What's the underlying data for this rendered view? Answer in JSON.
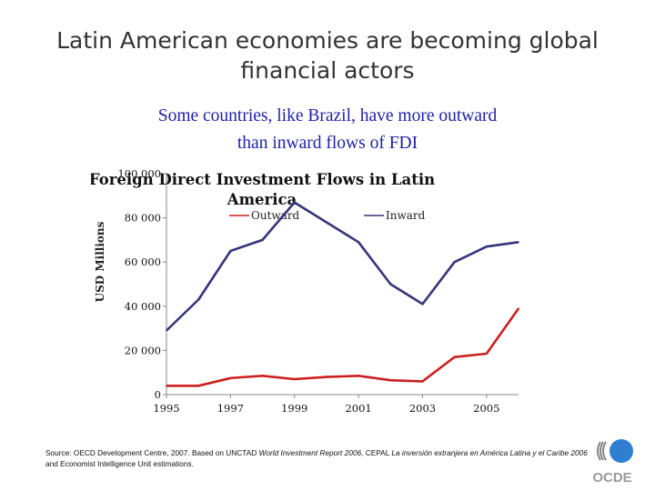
{
  "slide": {
    "title_line1": "Latin American economies are becoming global",
    "title_line2": "financial actors",
    "subtitle_line1": "Some countries, like Brazil, have more outward",
    "subtitle_line2": "than inward flows of FDI"
  },
  "source": {
    "prefix": "Source: OECD Development Centre, 2007. Based on UNCTAD ",
    "italic1": "World Investment Report 2006",
    "mid1": ", CEPAL ",
    "italic2": "La inversión extranjera en América Latina y el Caribe 2006",
    "suffix": " and Economist Intelligence Unit estimations."
  },
  "logo": {
    "text": "OCDE",
    "icon": "oecd-logo-icon"
  },
  "chart_data": {
    "type": "line",
    "title_line1": "Foreign Direct Investment Flows in Latin",
    "title_line2": "America",
    "ylabel": "USD Millions",
    "xlabel": "",
    "x": [
      1995,
      1996,
      1997,
      1998,
      1999,
      2000,
      2001,
      2002,
      2003,
      2004,
      2005,
      2006
    ],
    "x_tick_labels": [
      "1995",
      "1997",
      "1999",
      "2001",
      "2003",
      "2005"
    ],
    "x_ticks": [
      1995,
      1997,
      1999,
      2001,
      2003,
      2005
    ],
    "ylim": [
      0,
      100000
    ],
    "y_ticks": [
      0,
      20000,
      40000,
      60000,
      80000,
      100000
    ],
    "y_tick_labels": [
      "0",
      "20 000",
      "40 000",
      "60 000",
      "80 000",
      "100 000"
    ],
    "legend_position": "top",
    "grid": false,
    "series": [
      {
        "name": "Outward",
        "color": "#cc1f1f",
        "values": [
          4000,
          4000,
          7500,
          8500,
          7000,
          8000,
          8500,
          6500,
          6000,
          17000,
          18500,
          39000
        ]
      },
      {
        "name": "Inward",
        "color": "#35357a",
        "values": [
          29000,
          43000,
          65000,
          70000,
          87000,
          78000,
          69000,
          50000,
          41000,
          60000,
          67000,
          69000
        ]
      }
    ]
  }
}
